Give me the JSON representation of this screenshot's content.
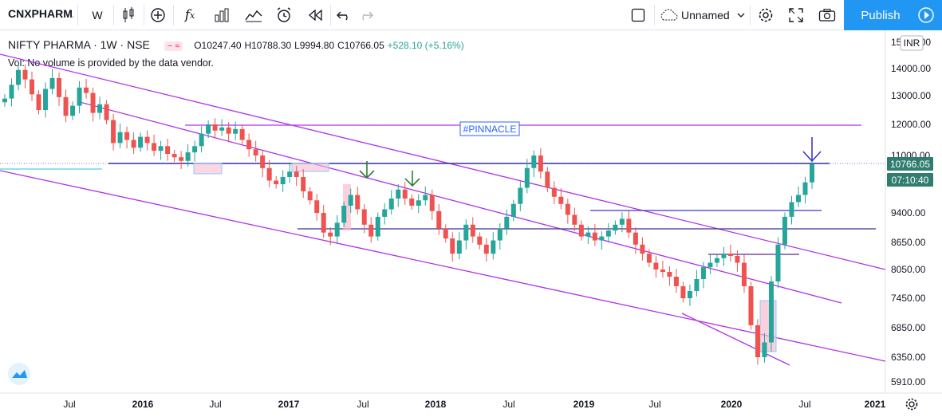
{
  "toolbar": {
    "symbol": "CNXPHARMA",
    "interval": "W",
    "layout_name": "Unnamed",
    "publish_label": "Publish"
  },
  "legend": {
    "title": "NIFTY PHARMA · 1W · NSE",
    "open": "O10247.40",
    "high": "H10788.30",
    "low": "L9994.80",
    "close": "C10766.05",
    "change": "+528.10 (+5.16%)",
    "volume_note": "Vol: No volume is provided by the data vendor."
  },
  "currency": "INR",
  "price_axis": [
    "15000.00",
    "14000.00",
    "13000.00",
    "12000.00",
    "11000.00",
    "9400.00",
    "8650.00",
    "8050.00",
    "7450.00",
    "6850.00",
    "6350.00",
    "5910.00"
  ],
  "last_price": "10766.05",
  "countdown": "07:10:40",
  "annotation": "#PINNACLE",
  "time_axis": [
    "Jul",
    "2016",
    "Jul",
    "2017",
    "Jul",
    "2018",
    "Jul",
    "2019",
    "Jul",
    "2020",
    "Jul",
    "2021"
  ],
  "colors": {
    "up": "#26a69a",
    "down": "#ef5350",
    "trend": "#b133e6",
    "level": "#3f36c8",
    "accent": "#2196f3"
  },
  "chart_data": {
    "type": "candlestick",
    "title": "NIFTY PHARMA · 1W · NSE",
    "ylim": [
      5910,
      15000
    ],
    "ticks": [
      5910,
      6350,
      6850,
      7450,
      8050,
      8650,
      9400,
      11000,
      12000,
      13000,
      14000,
      15000
    ],
    "closes": [
      12900,
      13400,
      13950,
      13600,
      13050,
      12500,
      13250,
      13650,
      12950,
      12300,
      12650,
      13300,
      13100,
      12400,
      12700,
      12150,
      11400,
      11750,
      11500,
      11250,
      11600,
      11400,
      11150,
      11300,
      11050,
      10950,
      10850,
      11100,
      11300,
      11700,
      12000,
      11800,
      11900,
      11700,
      11850,
      11500,
      11200,
      11000,
      10650,
      10300,
      10200,
      10400,
      10550,
      10400,
      10000,
      9750,
      9400,
      8900,
      8800,
      9150,
      9600,
      9900,
      9500,
      9100,
      8800,
      9300,
      9500,
      9800,
      10050,
      9800,
      9600,
      9750,
      9900,
      9450,
      9000,
      8750,
      8400,
      8700,
      9100,
      8800,
      8600,
      8400,
      8700,
      9000,
      9300,
      9650,
      10100,
      10650,
      11000,
      10550,
      10100,
      9850,
      9650,
      9350,
      9100,
      8800,
      8900,
      8700,
      8800,
      8950,
      9100,
      9250,
      8900,
      8600,
      8400,
      8200,
      8050,
      8000,
      7900,
      7700,
      7450,
      7600,
      7850,
      8100,
      8200,
      8300,
      8400,
      8350,
      8200,
      7700,
      6900,
      6350,
      6600,
      7800,
      8600,
      9300,
      9700,
      9900,
      10250,
      10766
    ]
  }
}
